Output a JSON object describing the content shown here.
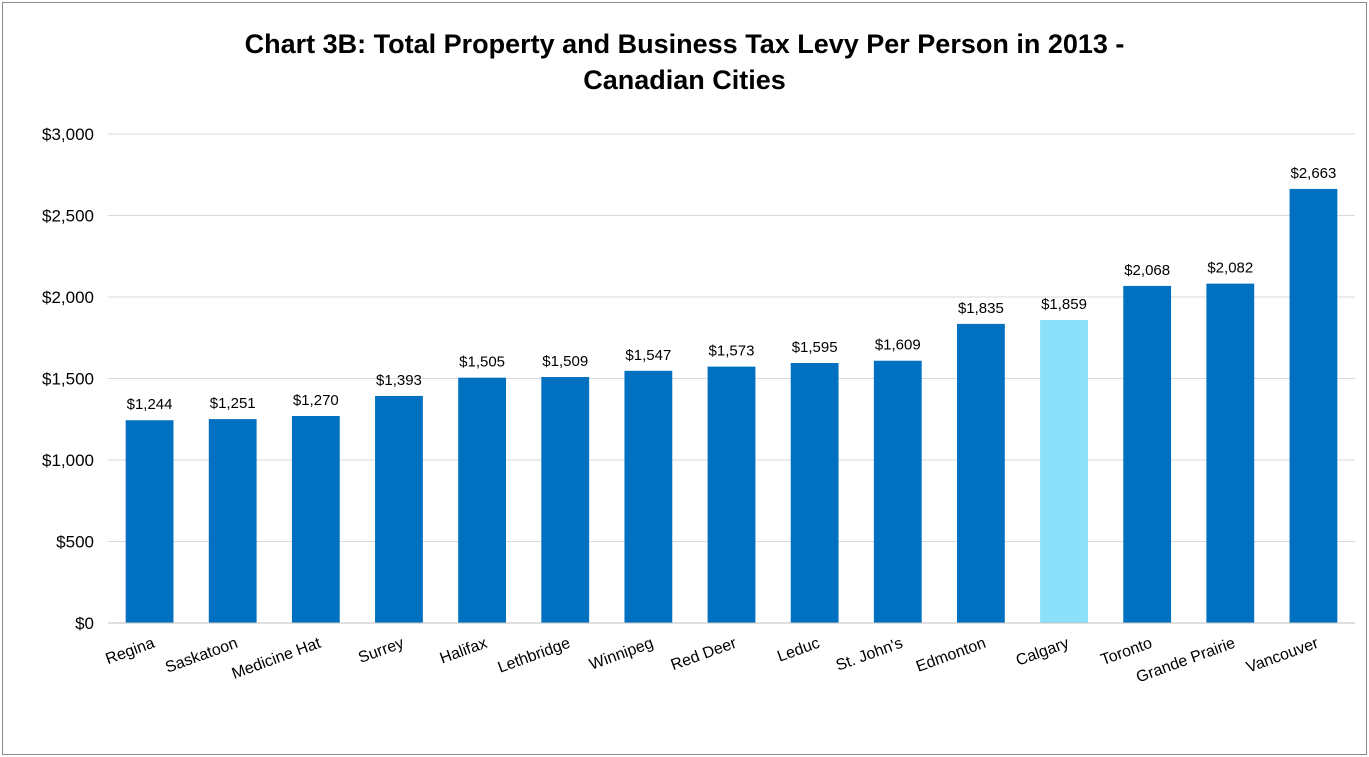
{
  "chart_data": {
    "type": "bar",
    "title_line1": "Chart 3B: Total Property and Business Tax Levy Per Person in 2013 -",
    "title_line2": "Canadian Cities",
    "categories": [
      "Regina",
      "Saskatoon",
      "Medicine Hat",
      "Surrey",
      "Halifax",
      "Lethbridge",
      "Winnipeg",
      "Red Deer",
      "Leduc",
      "St. John's",
      "Edmonton",
      "Calgary",
      "Toronto",
      "Grande Prairie",
      "Vancouver"
    ],
    "values": [
      1244,
      1251,
      1270,
      1393,
      1505,
      1509,
      1547,
      1573,
      1595,
      1609,
      1835,
      1859,
      2068,
      2082,
      2663
    ],
    "value_labels": [
      "$1,244",
      "$1,251",
      "$1,270",
      "$1,393",
      "$1,505",
      "$1,509",
      "$1,547",
      "$1,573",
      "$1,595",
      "$1,609",
      "$1,835",
      "$1,859",
      "$2,068",
      "$2,082",
      "$2,663"
    ],
    "highlight_category": "Calgary",
    "bar_color": "#0070c0",
    "highlight_color": "#8be0fa",
    "yticks": [
      0,
      500,
      1000,
      1500,
      2000,
      2500,
      3000
    ],
    "ytick_labels": [
      "$0",
      "$500",
      "$1,000",
      "$1,500",
      "$2,000",
      "$2,500",
      "$3,000"
    ],
    "ylim": [
      0,
      3000
    ],
    "xlabel": "",
    "ylabel": "",
    "grid": true,
    "legend": false
  }
}
